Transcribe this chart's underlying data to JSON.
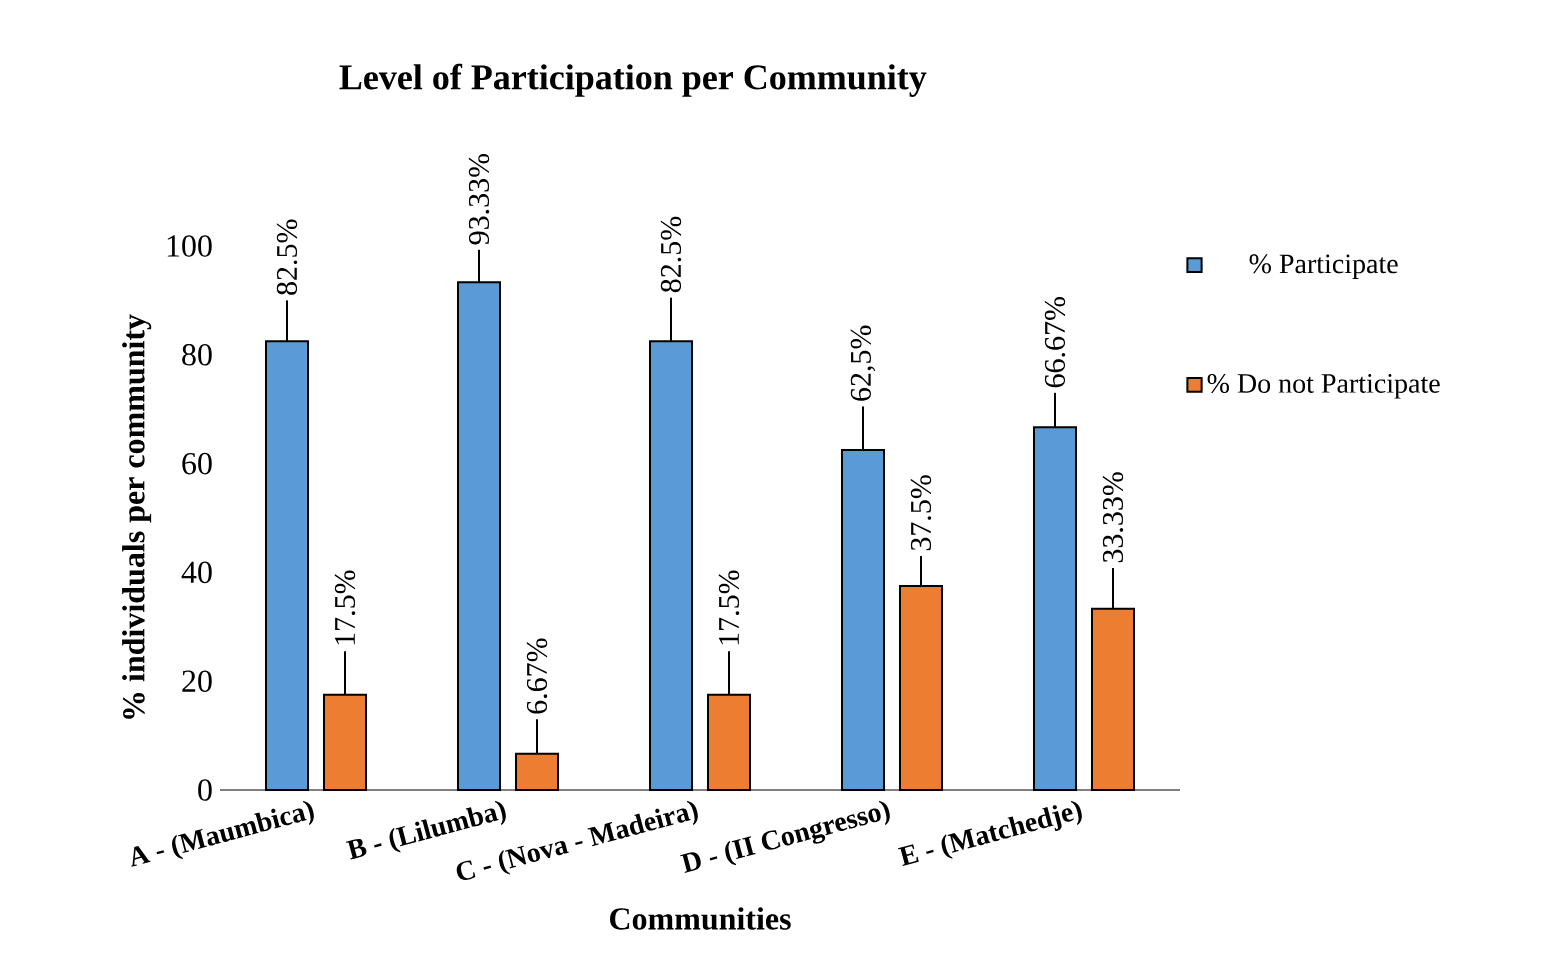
{
  "chart_data": {
    "type": "bar",
    "title": "Level of Participation per Community",
    "xlabel": "Communities",
    "ylabel": "% individuals per  community",
    "categories": [
      "A - (Maumbica)",
      "B - (Lilumba)",
      "C - (Nova - Madeira)",
      "D - (II Congresso)",
      "E - (Matchedje)"
    ],
    "series": [
      {
        "name": "% Participate",
        "color": "#5b9bd5",
        "values": [
          82.5,
          93.33,
          82.5,
          62.5,
          66.67
        ],
        "errors": [
          [
            82.5,
            90
          ],
          [
            93.33,
            99.3
          ],
          [
            82.5,
            90.5
          ],
          [
            62.5,
            70.5
          ],
          [
            66.67,
            73
          ]
        ],
        "value_labels": [
          "82.5%",
          "93.33%",
          "82.5%",
          "62,5%",
          "66.67%"
        ]
      },
      {
        "name": "% Do not Participate",
        "color": "#ed7d31",
        "values": [
          17.5,
          6.67,
          17.5,
          37.5,
          33.33
        ],
        "errors": [
          [
            17.5,
            25.5
          ],
          [
            6.67,
            13
          ],
          [
            17.5,
            25.5
          ],
          [
            37.5,
            43
          ],
          [
            33.33,
            40.8
          ]
        ],
        "value_labels": [
          "17.5%",
          "6.67%",
          "17.5%",
          "37.5%",
          "33.33%"
        ]
      }
    ],
    "ylim": [
      0,
      100
    ],
    "yticks": [
      0,
      20,
      40,
      60,
      80,
      100
    ],
    "grid": false,
    "legend": "right"
  }
}
